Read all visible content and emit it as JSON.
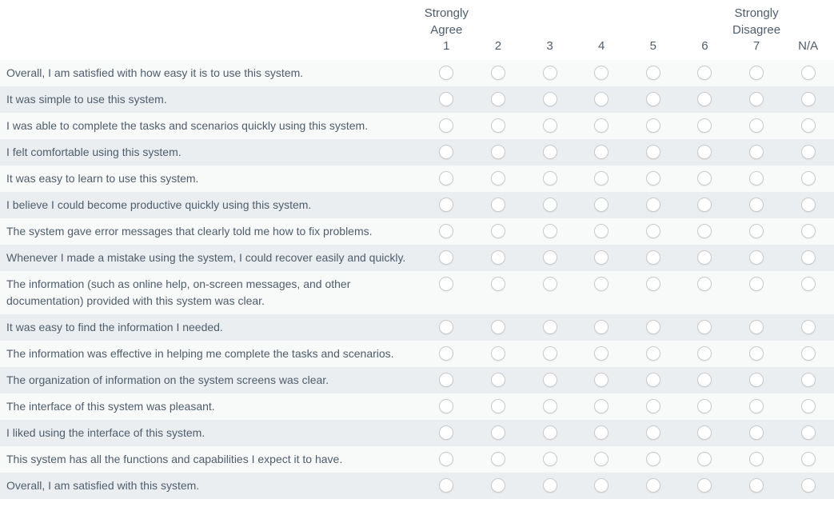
{
  "header": {
    "anchors": [
      "Strongly Agree",
      "",
      "",
      "",
      "",
      "",
      "Strongly Disagree",
      ""
    ],
    "points": [
      "1",
      "2",
      "3",
      "4",
      "5",
      "6",
      "7",
      "N/A"
    ]
  },
  "questions": [
    "Overall, I am satisfied with how easy it is to use this system.",
    "It was simple to use this system.",
    "I was able to complete the tasks and scenarios quickly using this system.",
    "I felt comfortable using this system.",
    "It was easy to learn to use this system.",
    "I believe I could become productive quickly using this system.",
    "The system gave error messages that clearly told me how to fix problems.",
    "Whenever I made a mistake using the system, I could recover easily and quickly.",
    "The information (such as online help, on-screen messages, and other documentation) provided with this system was clear.",
    "It was easy to find the information I needed.",
    "The information was effective in helping me complete the tasks and scenarios.",
    "The organization of information on the system screens was clear.",
    "The interface of this system was pleasant.",
    "I liked using the interface of this system.",
    "This system has all the functions and capabilities I expect it to have.",
    "Overall, I am satisfied with this system."
  ],
  "state": {
    "selected": null
  },
  "colors": {
    "text": "#4e5d6c",
    "row_light": "#f8f9f9",
    "row_dark": "#ebeef0",
    "radio_border": "#c6cacd",
    "radio_fill": "#ffffff"
  }
}
